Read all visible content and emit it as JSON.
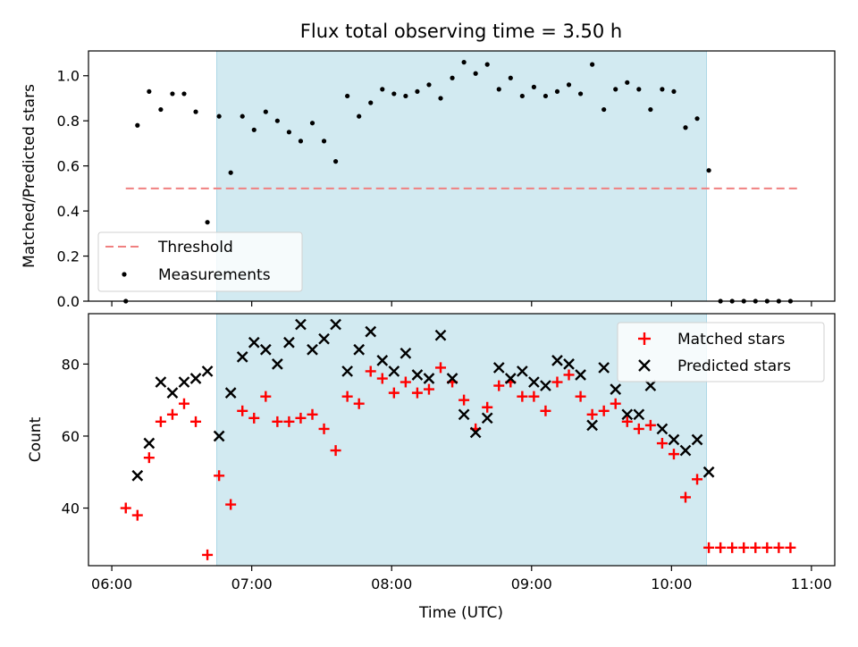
{
  "chart_data": [
    {
      "type": "scatter",
      "title": "Flux total observing time = 3.50 h",
      "xlabel": "",
      "ylabel": "Matched/Predicted stars",
      "xlim": [
        "05:50",
        "11:10"
      ],
      "ylim": [
        0,
        1.11
      ],
      "y_ticks": [
        "0.0",
        "0.2",
        "0.4",
        "0.6",
        "0.8",
        "1.0"
      ],
      "x_ticks": [
        "06:00",
        "07:00",
        "08:00",
        "09:00",
        "10:00",
        "11:00"
      ],
      "x_tick_labels_shown": false,
      "shaded_interval": [
        "06:45",
        "10:15"
      ],
      "shade_color": "#add8e6",
      "threshold": {
        "name": "Threshold",
        "value": 0.5,
        "x_start": "06:06",
        "x_end": "10:54",
        "color": "#f08080",
        "style": "dashed"
      },
      "series": [
        {
          "name": "Measurements",
          "marker": "dot",
          "color": "#000000",
          "x": [
            "06:06",
            "06:11",
            "06:16",
            "06:21",
            "06:26",
            "06:31",
            "06:36",
            "06:41",
            "06:46",
            "06:51",
            "06:56",
            "07:01",
            "07:06",
            "07:11",
            "07:16",
            "07:21",
            "07:26",
            "07:31",
            "07:36",
            "07:41",
            "07:46",
            "07:51",
            "07:56",
            "08:01",
            "08:06",
            "08:11",
            "08:16",
            "08:21",
            "08:26",
            "08:31",
            "08:36",
            "08:41",
            "08:46",
            "08:51",
            "08:56",
            "09:01",
            "09:06",
            "09:11",
            "09:16",
            "09:21",
            "09:26",
            "09:31",
            "09:36",
            "09:41",
            "09:46",
            "09:51",
            "09:56",
            "10:01",
            "10:06",
            "10:11",
            "10:16",
            "10:21",
            "10:26",
            "10:31",
            "10:36",
            "10:41",
            "10:46",
            "10:51"
          ],
          "values": [
            0.0,
            0.78,
            0.93,
            0.85,
            0.92,
            0.92,
            0.84,
            0.35,
            0.82,
            0.57,
            0.82,
            0.76,
            0.84,
            0.8,
            0.75,
            0.71,
            0.79,
            0.71,
            0.62,
            0.91,
            0.82,
            0.88,
            0.94,
            0.92,
            0.91,
            0.93,
            0.96,
            0.9,
            0.99,
            1.06,
            1.01,
            1.05,
            0.94,
            0.99,
            0.91,
            0.95,
            0.91,
            0.93,
            0.96,
            0.92,
            1.05,
            0.85,
            0.94,
            0.97,
            0.94,
            0.85,
            0.94,
            0.93,
            0.77,
            0.81,
            0.58,
            0.0,
            0.0,
            0.0,
            0.0,
            0.0,
            0.0,
            0.0
          ]
        }
      ],
      "legend": {
        "position": "lower-left",
        "entries": [
          "Threshold",
          "Measurements"
        ]
      }
    },
    {
      "type": "scatter",
      "title": "",
      "xlabel": "Time (UTC)",
      "ylabel": "Count",
      "xlim": [
        "05:50",
        "11:10"
      ],
      "ylim": [
        24,
        94
      ],
      "y_ticks": [
        "40",
        "60",
        "80"
      ],
      "x_ticks": [
        "06:00",
        "07:00",
        "08:00",
        "09:00",
        "10:00",
        "11:00"
      ],
      "shaded_interval": [
        "06:45",
        "10:15"
      ],
      "shade_color": "#add8e6",
      "series": [
        {
          "name": "Matched stars",
          "marker": "plus",
          "color": "#ff0000",
          "x": [
            "06:06",
            "06:11",
            "06:16",
            "06:21",
            "06:26",
            "06:31",
            "06:36",
            "06:41",
            "06:46",
            "06:51",
            "06:56",
            "07:01",
            "07:06",
            "07:11",
            "07:16",
            "07:21",
            "07:26",
            "07:31",
            "07:36",
            "07:41",
            "07:46",
            "07:51",
            "07:56",
            "08:01",
            "08:06",
            "08:11",
            "08:16",
            "08:21",
            "08:26",
            "08:31",
            "08:36",
            "08:41",
            "08:46",
            "08:51",
            "08:56",
            "09:01",
            "09:06",
            "09:11",
            "09:16",
            "09:21",
            "09:26",
            "09:31",
            "09:36",
            "09:41",
            "09:46",
            "09:51",
            "09:56",
            "10:01",
            "10:06",
            "10:11",
            "10:16",
            "10:21",
            "10:26",
            "10:31",
            "10:36",
            "10:41",
            "10:46",
            "10:51"
          ],
          "values": [
            40,
            38,
            54,
            64,
            66,
            69,
            64,
            27,
            49,
            41,
            67,
            65,
            71,
            64,
            64,
            65,
            66,
            62,
            56,
            71,
            69,
            78,
            76,
            72,
            75,
            72,
            73,
            79,
            75,
            70,
            62,
            68,
            74,
            75,
            71,
            71,
            67,
            75,
            77,
            71,
            66,
            67,
            69,
            64,
            62,
            63,
            58,
            55,
            43,
            48,
            29,
            29,
            29,
            29,
            29,
            29,
            29,
            29
          ]
        },
        {
          "name": "Predicted stars",
          "marker": "x",
          "color": "#000000",
          "x": [
            "06:11",
            "06:16",
            "06:21",
            "06:26",
            "06:31",
            "06:36",
            "06:41",
            "06:46",
            "06:51",
            "06:56",
            "07:01",
            "07:06",
            "07:11",
            "07:16",
            "07:21",
            "07:26",
            "07:31",
            "07:36",
            "07:41",
            "07:46",
            "07:51",
            "07:56",
            "08:01",
            "08:06",
            "08:11",
            "08:16",
            "08:21",
            "08:26",
            "08:31",
            "08:36",
            "08:41",
            "08:46",
            "08:51",
            "08:56",
            "09:01",
            "09:06",
            "09:11",
            "09:16",
            "09:21",
            "09:26",
            "09:31",
            "09:36",
            "09:41",
            "09:46",
            "09:51",
            "09:56",
            "10:01",
            "10:06",
            "10:11",
            "10:16"
          ],
          "values": [
            49,
            58,
            75,
            72,
            75,
            76,
            78,
            60,
            72,
            82,
            86,
            84,
            80,
            86,
            91,
            84,
            87,
            91,
            78,
            84,
            89,
            81,
            78,
            83,
            77,
            76,
            88,
            76,
            66,
            61,
            65,
            79,
            76,
            78,
            75,
            74,
            81,
            80,
            77,
            63,
            79,
            73,
            66,
            66,
            74,
            62,
            59,
            56,
            59,
            50
          ]
        }
      ],
      "legend": {
        "position": "upper-right",
        "entries": [
          "Matched stars",
          "Predicted stars"
        ]
      }
    }
  ]
}
